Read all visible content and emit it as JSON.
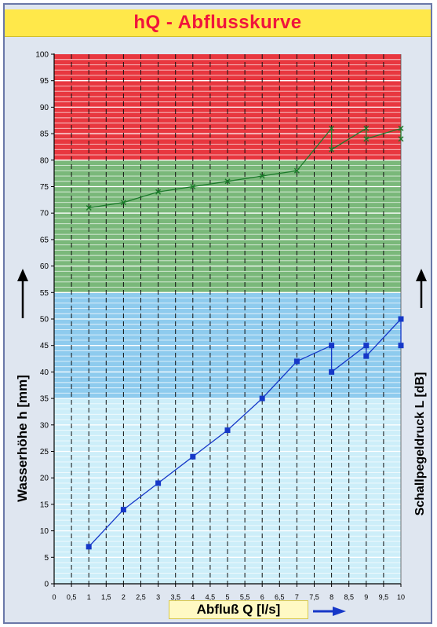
{
  "title": "hQ - Abflusskurve",
  "chart_data": {
    "type": "line",
    "xlabel": "Abfluß Q [l/s]",
    "ylabel": "Wasserhöhe h [mm]",
    "y2label": "Schallpegeldruck L [dB]",
    "xlim": [
      0,
      10
    ],
    "ylim": [
      0,
      100
    ],
    "x_ticks": [
      "0",
      "0,5",
      "1",
      "1,5",
      "2",
      "2,5",
      "3",
      "3,5",
      "4",
      "4,5",
      "5",
      "5,5",
      "6",
      "6,5",
      "7",
      "7,5",
      "8",
      "8,5",
      "9",
      "9,5",
      "10"
    ],
    "y_ticks": [
      "0",
      "5",
      "10",
      "15",
      "20",
      "25",
      "30",
      "35",
      "40",
      "45",
      "50",
      "55",
      "60",
      "65",
      "70",
      "75",
      "80",
      "85",
      "90",
      "95",
      "100"
    ],
    "bands": [
      {
        "from": 80,
        "to": 100,
        "color": "#e8373f"
      },
      {
        "from": 55,
        "to": 80,
        "color": "#7ab87a"
      },
      {
        "from": 35,
        "to": 55,
        "color": "#8ecbee"
      },
      {
        "from": 0,
        "to": 35,
        "color": "#cdeef9"
      }
    ],
    "series": [
      {
        "color": "#1638c8",
        "marker": "square",
        "points": [
          [
            1,
            7
          ],
          [
            2,
            14
          ],
          [
            3,
            19
          ],
          [
            4,
            24
          ],
          [
            5,
            29
          ],
          [
            6,
            35
          ],
          [
            7,
            42
          ],
          [
            8,
            45
          ],
          [
            8,
            40
          ],
          [
            9,
            45
          ],
          [
            9,
            43
          ],
          [
            10,
            50
          ],
          [
            10,
            45
          ]
        ]
      },
      {
        "color": "#1b7a2a",
        "marker": "x",
        "points": [
          [
            1,
            71
          ],
          [
            2,
            72
          ],
          [
            3,
            74
          ],
          [
            4,
            75
          ],
          [
            5,
            76
          ],
          [
            6,
            77
          ],
          [
            7,
            78
          ],
          [
            8,
            86
          ],
          [
            8,
            82
          ],
          [
            9,
            86
          ],
          [
            9,
            84
          ],
          [
            10,
            86
          ],
          [
            10,
            84
          ]
        ]
      }
    ]
  }
}
